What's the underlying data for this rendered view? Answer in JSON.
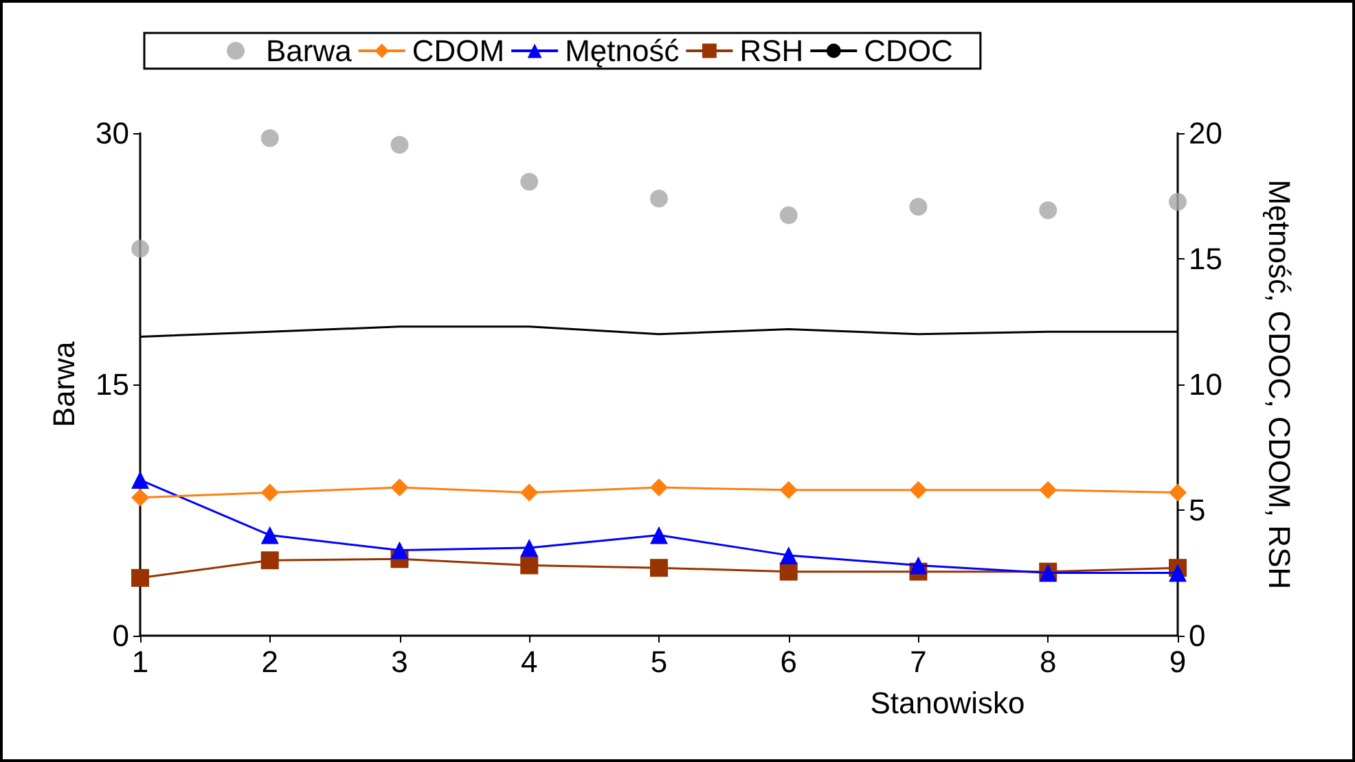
{
  "chart_data": {
    "type": "line",
    "xlabel": "Stanowisko",
    "ylabel": "Barwa",
    "y2label": "Mętność, CDOC, CDOM, RSH",
    "categories": [
      "1",
      "2",
      "3",
      "4",
      "5",
      "6",
      "7",
      "8",
      "9"
    ],
    "ylim": [
      0,
      30
    ],
    "yticks": [
      0,
      15,
      30
    ],
    "y2lim": [
      0,
      20
    ],
    "y2ticks": [
      0,
      5,
      10,
      15,
      20
    ],
    "grid": false,
    "legend": "top",
    "series": [
      {
        "name": "Barwa",
        "type": "scatter",
        "color": "#a6a6a6",
        "marker": "circle",
        "values": [
          23.1,
          29.7,
          29.3,
          27.1,
          26.1,
          25.1,
          25.6,
          25.4,
          25.9
        ]
      },
      {
        "name": "CDOM",
        "axis": "y2",
        "color": "#ff7f0e",
        "marker": "diamond",
        "values": [
          5.5,
          5.7,
          5.9,
          5.7,
          5.9,
          5.8,
          5.8,
          5.8,
          5.7
        ]
      },
      {
        "name": "Mętność",
        "axis": "y2",
        "color": "#0000ff",
        "marker": "triangle",
        "values": [
          6.2,
          4.0,
          3.4,
          3.5,
          4.0,
          3.2,
          2.8,
          2.5,
          2.5
        ]
      },
      {
        "name": "RSH",
        "axis": "y2",
        "color": "#993300",
        "marker": "square",
        "values": [
          2.3,
          3.0,
          3.05,
          2.8,
          2.7,
          2.55,
          2.55,
          2.55,
          2.7
        ]
      },
      {
        "name": "CDOC",
        "axis": "y2",
        "color": "#000000",
        "marker": "none",
        "values": [
          11.9,
          12.1,
          12.3,
          12.3,
          12.0,
          12.2,
          12.0,
          12.1,
          12.1
        ]
      }
    ]
  }
}
